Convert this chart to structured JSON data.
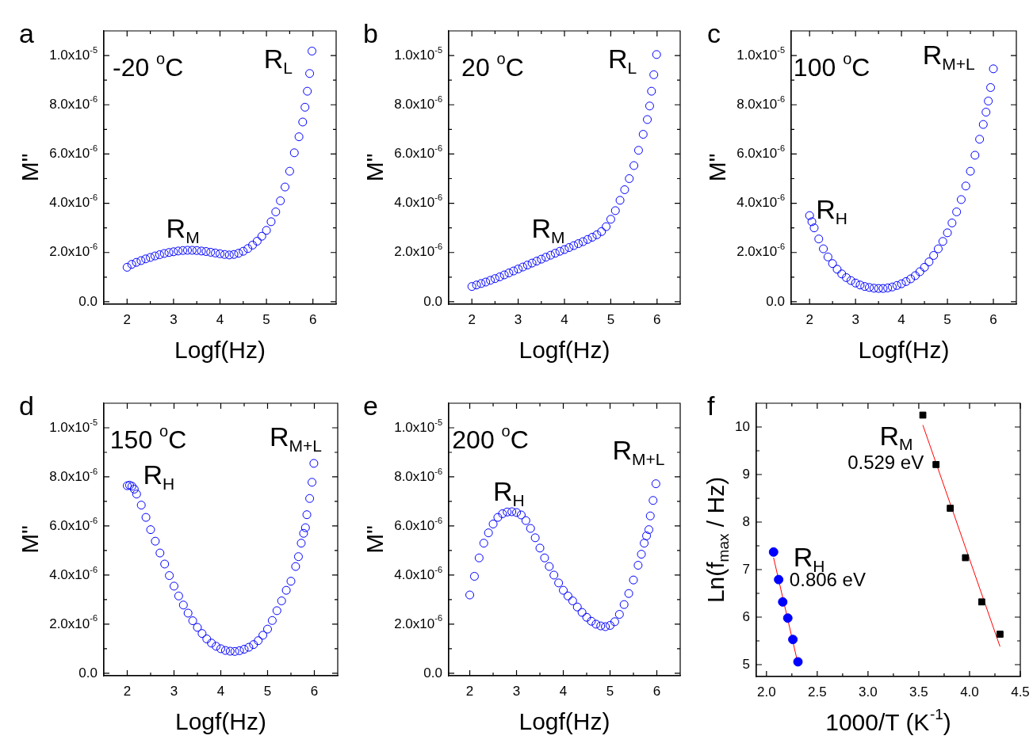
{
  "chart_data": [
    {
      "type": "scatter",
      "title": "a",
      "xlabel": "Logf(Hz)",
      "ylabel": "M\"",
      "marker": "circle",
      "color": "#0000ff",
      "xlim": [
        1.5,
        6.5
      ],
      "ylim": [
        -1e-07,
        1.1e-05
      ],
      "xticks": [
        2,
        {
          "value": 2.5,
          "label": null
        },
        3,
        {
          "value": 3.5,
          "label": null
        },
        4,
        {
          "value": 4.5,
          "label": null
        },
        5,
        {
          "value": 5.5,
          "label": null
        },
        6
      ],
      "yticks": [
        {
          "value": 0,
          "label": "0.0"
        },
        {
          "value": 1e-06,
          "label": null
        },
        {
          "value": 2e-06,
          "label": "2.0x10$^{-6}$"
        },
        {
          "value": 3e-06,
          "label": null
        },
        {
          "value": 4e-06,
          "label": "4.0x10$^{-6}$"
        },
        {
          "value": 5e-06,
          "label": null
        },
        {
          "value": 6e-06,
          "label": "6.0x10$^{-6}$"
        },
        {
          "value": 7e-06,
          "label": null
        },
        {
          "value": 8e-06,
          "label": "8.0x10$^{-6}$"
        },
        {
          "value": 9e-06,
          "label": null
        },
        {
          "value": 1e-05,
          "label": "1.0x10$^{-5}$"
        }
      ],
      "x": [
        2.0,
        2.1,
        2.2,
        2.3,
        2.4,
        2.5,
        2.6,
        2.7,
        2.8,
        2.9,
        3.0,
        3.1,
        3.2,
        3.3,
        3.4,
        3.5,
        3.6,
        3.7,
        3.8,
        3.9,
        4.0,
        4.1,
        4.2,
        4.3,
        4.4,
        4.5,
        4.6,
        4.7,
        4.8,
        4.9,
        5.0,
        5.1,
        5.2,
        5.3,
        5.4,
        5.5,
        5.6,
        5.7,
        5.78,
        5.83,
        5.88,
        5.93,
        5.98
      ],
      "values": [
        1.4e-06,
        1.52e-06,
        1.6e-06,
        1.67e-06,
        1.74e-06,
        1.8e-06,
        1.86e-06,
        1.91e-06,
        1.96e-06,
        2e-06,
        2.03e-06,
        2.06e-06,
        2.08e-06,
        2.09e-06,
        2.09e-06,
        2.08e-06,
        2.06e-06,
        2.04e-06,
        2.01e-06,
        1.98e-06,
        1.95e-06,
        1.92e-06,
        1.9e-06,
        1.92e-06,
        1.97e-06,
        2.05e-06,
        2.16e-06,
        2.3e-06,
        2.46e-06,
        2.66e-06,
        2.9e-06,
        3.25e-06,
        3.65e-06,
        4.1e-06,
        4.66e-06,
        5.3e-06,
        6.05e-06,
        6.7e-06,
        7.3e-06,
        7.9e-06,
        8.55e-06,
        9.27e-06,
        1.018e-05
      ],
      "annotations": [
        "-20 $^{o}$C",
        "R$_{L}$",
        "R$_{M}$"
      ]
    },
    {
      "type": "scatter",
      "title": "b",
      "xlabel": "Logf(Hz)",
      "ylabel": "M\"",
      "marker": "circle",
      "color": "#0000ff",
      "xlim": [
        1.5,
        6.5
      ],
      "ylim": [
        -1e-07,
        1.1e-05
      ],
      "xticks": [
        2,
        {
          "value": 2.5,
          "label": null
        },
        3,
        {
          "value": 3.5,
          "label": null
        },
        4,
        {
          "value": 4.5,
          "label": null
        },
        5,
        {
          "value": 5.5,
          "label": null
        },
        6
      ],
      "yticks": [
        {
          "value": 0,
          "label": "0.0"
        },
        {
          "value": 1e-06,
          "label": null
        },
        {
          "value": 2e-06,
          "label": "2.0x10$^{-6}$"
        },
        {
          "value": 3e-06,
          "label": null
        },
        {
          "value": 4e-06,
          "label": "4.0x10$^{-6}$"
        },
        {
          "value": 5e-06,
          "label": null
        },
        {
          "value": 6e-06,
          "label": "6.0x10$^{-6}$"
        },
        {
          "value": 7e-06,
          "label": null
        },
        {
          "value": 8e-06,
          "label": "8.0x10$^{-6}$"
        },
        {
          "value": 9e-06,
          "label": null
        },
        {
          "value": 1e-05,
          "label": "1.0x10$^{-5}$"
        }
      ],
      "x": [
        2.0,
        2.1,
        2.2,
        2.3,
        2.4,
        2.5,
        2.6,
        2.7,
        2.8,
        2.9,
        3.0,
        3.1,
        3.2,
        3.3,
        3.4,
        3.5,
        3.6,
        3.7,
        3.8,
        3.9,
        4.0,
        4.1,
        4.2,
        4.3,
        4.4,
        4.5,
        4.6,
        4.7,
        4.8,
        4.9,
        5.0,
        5.1,
        5.2,
        5.3,
        5.4,
        5.5,
        5.6,
        5.7,
        5.79,
        5.84,
        5.88,
        5.93,
        5.99
      ],
      "values": [
        6.2e-07,
        6.8e-07,
        7.4e-07,
        8e-07,
        8.7e-07,
        9.4e-07,
        1.01e-06,
        1.09e-06,
        1.17e-06,
        1.25e-06,
        1.33e-06,
        1.41e-06,
        1.49e-06,
        1.57e-06,
        1.65e-06,
        1.73e-06,
        1.81e-06,
        1.89e-06,
        1.97e-06,
        2.05e-06,
        2.12e-06,
        2.2e-06,
        2.28e-06,
        2.36e-06,
        2.44e-06,
        2.53e-06,
        2.62e-06,
        2.72e-06,
        2.85e-06,
        3.05e-06,
        3.35e-06,
        3.7e-06,
        4.12e-06,
        4.55e-06,
        5e-06,
        5.53e-06,
        6.15e-06,
        6.8e-06,
        7.4e-06,
        7.95e-06,
        8.55e-06,
        9.22e-06,
        1.004e-05
      ],
      "annotations": [
        "20 $^{o}$C",
        "R$_{L}$",
        "R$_{M}$"
      ]
    },
    {
      "type": "scatter",
      "title": "c",
      "xlabel": "Logf(Hz)",
      "ylabel": "M\"",
      "marker": "circle",
      "color": "#0000ff",
      "xlim": [
        1.6,
        6.5
      ],
      "ylim": [
        -1e-07,
        1.1e-05
      ],
      "xticks": [
        2,
        {
          "value": 2.5,
          "label": null
        },
        3,
        {
          "value": 3.5,
          "label": null
        },
        4,
        {
          "value": 4.5,
          "label": null
        },
        5,
        {
          "value": 5.5,
          "label": null
        },
        6
      ],
      "yticks": [
        {
          "value": 0,
          "label": "0.0"
        },
        {
          "value": 1e-06,
          "label": null
        },
        {
          "value": 2e-06,
          "label": "2.0x10$^{-6}$"
        },
        {
          "value": 3e-06,
          "label": null
        },
        {
          "value": 4e-06,
          "label": "4.0x10$^{-6}$"
        },
        {
          "value": 5e-06,
          "label": null
        },
        {
          "value": 6e-06,
          "label": "6.0x10$^{-6}$"
        },
        {
          "value": 7e-06,
          "label": null
        },
        {
          "value": 8e-06,
          "label": "8.0x10$^{-6}$"
        },
        {
          "value": 9e-06,
          "label": null
        },
        {
          "value": 1e-05,
          "label": "1.0x10$^{-5}$"
        }
      ],
      "x": [
        2.0,
        2.05,
        2.1,
        2.2,
        2.3,
        2.4,
        2.5,
        2.6,
        2.7,
        2.8,
        2.9,
        3.0,
        3.1,
        3.2,
        3.3,
        3.4,
        3.5,
        3.6,
        3.7,
        3.8,
        3.9,
        4.0,
        4.1,
        4.2,
        4.3,
        4.4,
        4.5,
        4.6,
        4.7,
        4.8,
        4.9,
        5.0,
        5.1,
        5.2,
        5.3,
        5.4,
        5.5,
        5.6,
        5.7,
        5.78,
        5.84,
        5.89,
        5.94,
        6.0
      ],
      "values": [
        3.5e-06,
        3.25e-06,
        3e-06,
        2.55e-06,
        2.15e-06,
        1.82e-06,
        1.55e-06,
        1.32e-06,
        1.13e-06,
        9.8e-07,
        8.6e-07,
        7.6e-07,
        6.8e-07,
        6.2e-07,
        5.8e-07,
        5.5e-07,
        5.4e-07,
        5.4e-07,
        5.6e-07,
        6e-07,
        6.6e-07,
        7.3e-07,
        8.2e-07,
        9.3e-07,
        1.06e-06,
        1.22e-06,
        1.4e-06,
        1.62e-06,
        1.88e-06,
        2.15e-06,
        2.45e-06,
        2.8e-06,
        3.2e-06,
        3.65e-06,
        4.15e-06,
        4.7e-06,
        5.3e-06,
        5.95e-06,
        6.6e-06,
        7.2e-06,
        7.7e-06,
        8.15e-06,
        8.7e-06,
        9.46e-06
      ],
      "annotations": [
        "100 $^{o}$C",
        "R$_{M+L}$",
        "R$_{H}$"
      ]
    },
    {
      "type": "scatter",
      "title": "d",
      "xlabel": "Logf(Hz)",
      "ylabel": "M\"",
      "marker": "circle",
      "color": "#0000ff",
      "xlim": [
        1.5,
        6.5
      ],
      "ylim": [
        -1e-07,
        1.1e-05
      ],
      "xticks": [
        2,
        {
          "value": 2.5,
          "label": null
        },
        3,
        {
          "value": 3.5,
          "label": null
        },
        4,
        {
          "value": 4.5,
          "label": null
        },
        5,
        {
          "value": 5.5,
          "label": null
        },
        6
      ],
      "yticks": [
        {
          "value": 0,
          "label": "0.0"
        },
        {
          "value": 1e-06,
          "label": null
        },
        {
          "value": 2e-06,
          "label": "2.0x10$^{-6}$"
        },
        {
          "value": 3e-06,
          "label": null
        },
        {
          "value": 4e-06,
          "label": "4.0x10$^{-6}$"
        },
        {
          "value": 5e-06,
          "label": null
        },
        {
          "value": 6e-06,
          "label": "6.0x10$^{-6}$"
        },
        {
          "value": 7e-06,
          "label": null
        },
        {
          "value": 8e-06,
          "label": "8.0x10$^{-6}$"
        },
        {
          "value": 9e-06,
          "label": null
        },
        {
          "value": 1e-05,
          "label": "1.0x10$^{-5}$"
        }
      ],
      "x": [
        2.0,
        2.05,
        2.1,
        2.15,
        2.2,
        2.3,
        2.4,
        2.5,
        2.6,
        2.7,
        2.8,
        2.9,
        3.0,
        3.1,
        3.2,
        3.3,
        3.4,
        3.5,
        3.6,
        3.7,
        3.8,
        3.9,
        4.0,
        4.1,
        4.2,
        4.3,
        4.4,
        4.5,
        4.6,
        4.7,
        4.8,
        4.9,
        5.0,
        5.1,
        5.2,
        5.3,
        5.4,
        5.5,
        5.6,
        5.66,
        5.72,
        5.77,
        5.81,
        5.84,
        5.9,
        5.95,
        5.99
      ],
      "values": [
        7.64e-06,
        7.66e-06,
        7.62e-06,
        7.5e-06,
        7.3e-06,
        6.85e-06,
        6.35e-06,
        5.85e-06,
        5.38e-06,
        4.9e-06,
        4.45e-06,
        3.98e-06,
        3.55e-06,
        3.15e-06,
        2.78e-06,
        2.45e-06,
        2.14e-06,
        1.87e-06,
        1.62e-06,
        1.4e-06,
        1.23e-06,
        1.1e-06,
        1e-06,
        9.3e-07,
        9e-07,
        8.9e-07,
        9.2e-07,
        9.8e-07,
        1.06e-06,
        1.17e-06,
        1.33e-06,
        1.55e-06,
        1.8e-06,
        2.15e-06,
        2.55e-06,
        2.95e-06,
        3.38e-06,
        3.75e-06,
        4.35e-06,
        4.75e-06,
        5.3e-06,
        5.7e-06,
        5.93e-06,
        6.46e-06,
        7.12e-06,
        7.78e-06,
        8.55e-06
      ],
      "annotations": [
        "150 $^{o}$C",
        "R$_{M+L}$",
        "R$_{H}$"
      ]
    },
    {
      "type": "scatter",
      "title": "e",
      "xlabel": "Logf(Hz)",
      "ylabel": "M\"",
      "marker": "circle",
      "color": "#0000ff",
      "xlim": [
        1.55,
        6.5
      ],
      "ylim": [
        -1e-07,
        1.1e-05
      ],
      "xticks": [
        2,
        {
          "value": 2.5,
          "label": null
        },
        3,
        {
          "value": 3.5,
          "label": null
        },
        4,
        {
          "value": 4.5,
          "label": null
        },
        5,
        {
          "value": 5.5,
          "label": null
        },
        6
      ],
      "yticks": [
        {
          "value": 0,
          "label": "0.0"
        },
        {
          "value": 1e-06,
          "label": null
        },
        {
          "value": 2e-06,
          "label": "2.0x10$^{-6}$"
        },
        {
          "value": 3e-06,
          "label": null
        },
        {
          "value": 4e-06,
          "label": "4.0x10$^{-6}$"
        },
        {
          "value": 5e-06,
          "label": null
        },
        {
          "value": 6e-06,
          "label": "6.0x10$^{-6}$"
        },
        {
          "value": 7e-06,
          "label": null
        },
        {
          "value": 8e-06,
          "label": "8.0x10$^{-6}$"
        },
        {
          "value": 9e-06,
          "label": null
        },
        {
          "value": 1e-05,
          "label": "1.0x10$^{-5}$"
        }
      ],
      "x": [
        2.0,
        2.1,
        2.2,
        2.3,
        2.4,
        2.5,
        2.6,
        2.7,
        2.8,
        2.9,
        3.0,
        3.1,
        3.2,
        3.3,
        3.4,
        3.5,
        3.6,
        3.7,
        3.8,
        3.9,
        4.0,
        4.1,
        4.2,
        4.3,
        4.4,
        4.5,
        4.6,
        4.7,
        4.8,
        4.9,
        5.0,
        5.1,
        5.2,
        5.3,
        5.4,
        5.5,
        5.6,
        5.67,
        5.73,
        5.78,
        5.83,
        5.86,
        5.92,
        5.98
      ],
      "values": [
        3.19e-06,
        3.95e-06,
        4.7e-06,
        5.3e-06,
        5.72e-06,
        6.08e-06,
        6.35e-06,
        6.5e-06,
        6.57e-06,
        6.58e-06,
        6.55e-06,
        6.45e-06,
        6.22e-06,
        5.9e-06,
        5.52e-06,
        5.1e-06,
        4.7e-06,
        4.35e-06,
        4e-06,
        3.68e-06,
        3.38e-06,
        3.15e-06,
        2.95e-06,
        2.7e-06,
        2.48e-06,
        2.28e-06,
        2.12e-06,
        2e-06,
        1.93e-06,
        1.9e-06,
        1.95e-06,
        2.1e-06,
        2.4e-06,
        2.8e-06,
        3.25e-06,
        3.8e-06,
        4.4e-06,
        4.85e-06,
        5.3e-06,
        5.6e-06,
        5.85e-06,
        6.41e-06,
        7.04e-06,
        7.72e-06
      ],
      "annotations": [
        "200 $^{o}$C",
        "R$_{M+L}$",
        "R$_{H}$"
      ]
    },
    {
      "type": "scatter",
      "title": "f",
      "xlabel": "1000/T (K$^{-1}$)",
      "ylabel": "Ln(f$_{max}$ / Hz)",
      "xlim": [
        1.9,
        4.5
      ],
      "ylim": [
        4.75,
        10.5
      ],
      "xticks": [
        {
          "value": 2,
          "label": "2.0"
        },
        {
          "value": 2.25,
          "label": null
        },
        {
          "value": 2.5,
          "label": "2.5"
        },
        {
          "value": 2.75,
          "label": null
        },
        {
          "value": 3,
          "label": "3.0"
        },
        {
          "value": 3.25,
          "label": null
        },
        {
          "value": 3.5,
          "label": "3.5"
        },
        {
          "value": 3.75,
          "label": null
        },
        {
          "value": 4,
          "label": "4.0"
        },
        {
          "value": 4.25,
          "label": null
        },
        {
          "value": 4.5,
          "label": "4.5"
        }
      ],
      "yticks": [
        5,
        {
          "value": 5.5,
          "label": null
        },
        6,
        {
          "value": 6.5,
          "label": null
        },
        7,
        {
          "value": 7.5,
          "label": null
        },
        8,
        {
          "value": 8.5,
          "label": null
        },
        9,
        {
          "value": 9.5,
          "label": null
        },
        10
      ],
      "series": [
        {
          "marker": "circle",
          "color": "#0000ff",
          "x": [
            2.07,
            2.12,
            2.16,
            2.21,
            2.26,
            2.31
          ],
          "values": [
            7.37,
            6.79,
            6.32,
            5.98,
            5.53,
            5.06
          ]
        },
        {
          "marker": "square",
          "color": "#000000",
          "x": [
            3.54,
            3.67,
            3.81,
            3.96,
            4.12,
            4.3
          ],
          "values": [
            10.25,
            9.21,
            8.29,
            7.25,
            6.32,
            5.64
          ]
        },
        {
          "type": "line",
          "marker": "none",
          "color": "#ff0000",
          "x": [
            2.07,
            2.31
          ],
          "values": [
            7.25,
            5.02
          ]
        },
        {
          "type": "line",
          "marker": "none",
          "color": "#ff0000",
          "x": [
            3.54,
            4.3
          ],
          "values": [
            10.04,
            5.38
          ]
        }
      ],
      "annotations": [
        "R$_{M}$",
        "0.529 eV",
        "R$_{H}$",
        "0.806 eV"
      ]
    }
  ]
}
